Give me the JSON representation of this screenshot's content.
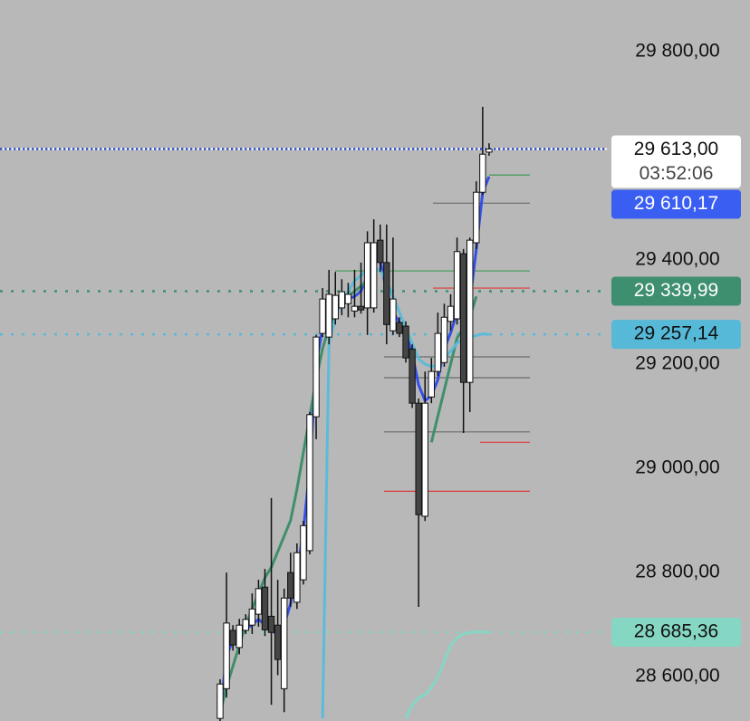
{
  "chart_data": {
    "type": "candlestick",
    "background": "#b8b8b8",
    "up_color": "#ffffff",
    "down_color": "#454545",
    "ylim": [
      28515,
      29899
    ],
    "yticks": [
      {
        "value": 28600,
        "label": "28 600,00"
      },
      {
        "value": 28800,
        "label": "28 800,00"
      },
      {
        "value": 29000,
        "label": "29 000,00"
      },
      {
        "value": 29200,
        "label": "29 200,00"
      },
      {
        "value": 29400,
        "label": "29 400,00"
      },
      {
        "value": 29800,
        "label": "29 800,00"
      }
    ],
    "open": [
      28520,
      28577,
      28689,
      28656,
      28689,
      28699,
      28720,
      28772,
      28716,
      28699,
      28577,
      28800,
      28743,
      28786,
      28842,
      29099,
      29259,
      29252,
      29287,
      29308,
      29316,
      29302,
      29311,
      29308,
      29308,
      29438,
      29395,
      29264,
      29280,
      29273,
      29229,
      29125,
      28908,
      29137,
      29186,
      29203,
      29282,
      29287,
      29412,
      29165,
      29433,
      29530,
      29607
    ],
    "high": [
      28595,
      28800,
      28699,
      28711,
      28720,
      28760,
      28786,
      28807,
      28943,
      28786,
      28769,
      28838,
      28856,
      28899,
      29108,
      29256,
      29346,
      29381,
      29377,
      29363,
      29356,
      29381,
      29395,
      29455,
      29478,
      29468,
      29468,
      29443,
      29290,
      29282,
      29238,
      29134,
      29186,
      29212,
      29299,
      29316,
      29334,
      29443,
      29421,
      29443,
      29551,
      29694,
      29624
    ],
    "low": [
      28515,
      28560,
      28650,
      28643,
      28682,
      28682,
      28696,
      28678,
      28546,
      28603,
      28532,
      28734,
      28730,
      28777,
      28835,
      29056,
      29252,
      29238,
      29276,
      29294,
      29290,
      29290,
      29297,
      29256,
      29299,
      29377,
      29238,
      29256,
      29252,
      29203,
      29116,
      28734,
      28899,
      29125,
      29177,
      29195,
      29264,
      29276,
      29068,
      29108,
      29421,
      29525,
      29600
    ],
    "close": [
      28586,
      28703,
      28661,
      28699,
      28710,
      28730,
      28769,
      28690,
      28685,
      28633,
      28751,
      28751,
      28838,
      28890,
      29103,
      29252,
      29325,
      29334,
      29332,
      29339,
      29334,
      29311,
      29304,
      29433,
      29433,
      29395,
      29276,
      29325,
      29259,
      29212,
      29125,
      28911,
      29125,
      29186,
      29259,
      29290,
      29311,
      29416,
      29165,
      29438,
      29530,
      29603,
      29613
    ],
    "series": [
      {
        "color": "#3450e6",
        "values": [
          28530,
          28640,
          28670,
          28680,
          28690,
          28700,
          28710,
          28700,
          28690,
          28680,
          28700,
          28740,
          28800,
          28880,
          29000,
          29200,
          29270,
          29300,
          29310,
          29320,
          29325,
          29330,
          29340,
          29370,
          29400,
          29400,
          29340,
          29300,
          29280,
          29260,
          29220,
          29160,
          29130,
          29140,
          29170,
          29230,
          29260,
          29300,
          29280,
          29320,
          29420,
          29530,
          29560
        ]
      },
      {
        "color": "#3f8f6c",
        "values": [
          28530,
          28580,
          28620,
          28660,
          28700,
          28730,
          28760,
          28790,
          28810,
          28840,
          28870,
          28900,
          28960,
          29030,
          29100,
          29170,
          29230,
          29270,
          29300,
          29320,
          29330,
          29340,
          29350,
          29360,
          29360,
          null,
          null,
          null,
          null,
          null,
          null,
          null,
          null,
          29050,
          29100,
          29150,
          29200,
          29250,
          29270,
          29290,
          29330,
          null,
          null
        ]
      },
      {
        "color": "#5bbbd9",
        "values": [
          null,
          null,
          null,
          null,
          null,
          null,
          null,
          null,
          null,
          null,
          null,
          null,
          null,
          null,
          null,
          null,
          28520,
          29240,
          29290,
          29320,
          29340,
          29360,
          29370,
          29380,
          29385,
          29380,
          29360,
          29330,
          29300,
          29270,
          29240,
          29210,
          29200,
          29195,
          29200,
          29210,
          29225,
          29240,
          29250,
          29252,
          29255,
          29258,
          29257
        ]
      },
      {
        "color": "#86d6c4",
        "values": [
          null,
          null,
          null,
          null,
          null,
          null,
          null,
          null,
          null,
          null,
          null,
          null,
          null,
          null,
          null,
          null,
          null,
          null,
          null,
          null,
          null,
          null,
          null,
          null,
          null,
          null,
          null,
          null,
          null,
          28520,
          28545,
          28560,
          28565,
          28580,
          28600,
          28630,
          28660,
          28675,
          28682,
          28685,
          28686,
          28686,
          28685
        ]
      }
    ],
    "levels": [
      {
        "value": 29613,
        "label": "29 613,00",
        "countdown": "03:52:06",
        "color": "#ffffff",
        "line_color": "#2b4fd6",
        "text_color": "#111111"
      },
      {
        "value": 29610.17,
        "label": "29 610,17",
        "color": "#3a5ef2",
        "text_color": "#ffffff"
      },
      {
        "value": 29339.99,
        "label": "29 339,99",
        "color": "#3e8f6f",
        "line_color": "#3e8f6f",
        "text_color": "#ffffff"
      },
      {
        "value": 29257.14,
        "label": "29 257,14",
        "color": "#57b9d8",
        "line_color": "#57b9d8",
        "text_color": "#111111"
      },
      {
        "value": 28685.36,
        "label": "28 685,36",
        "color": "#86d6c4",
        "line_color": "#86d6c4",
        "text_color": "#111111"
      }
    ],
    "segments": [
      {
        "value": 29563,
        "color": "#3f9a55"
      },
      {
        "value": 29509,
        "color": "#6b6b6b"
      },
      {
        "value": 29379,
        "color": "#3f9a55"
      },
      {
        "value": 29346,
        "color": "#e03a3a"
      },
      {
        "value": 29214,
        "color": "#6b6b6b"
      },
      {
        "value": 29174,
        "color": "#6b6b6b"
      },
      {
        "value": 29070,
        "color": "#6b6b6b"
      },
      {
        "value": 29050,
        "color": "#e03a3a"
      },
      {
        "value": 28956,
        "color": "#e03a3a"
      }
    ]
  }
}
